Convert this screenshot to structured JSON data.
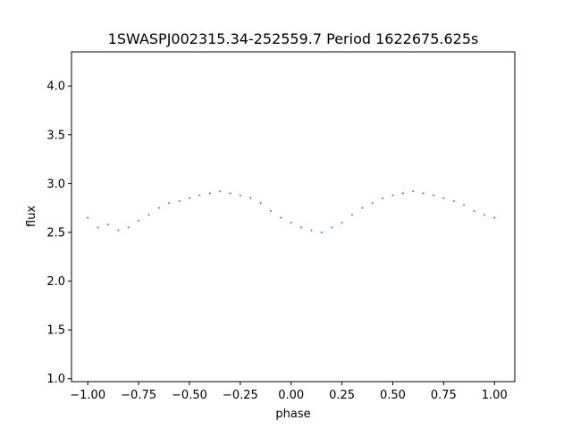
{
  "chart_data": {
    "type": "scatter",
    "title": "1SWASPJ002315.34-252559.7 Period 1622675.625s",
    "xlabel": "phase",
    "ylabel": "flux",
    "xlim": [
      -1.08,
      1.1
    ],
    "ylim": [
      0.97,
      4.35
    ],
    "xticks": [
      -1.0,
      -0.75,
      -0.5,
      -0.25,
      0.0,
      0.25,
      0.5,
      0.75,
      1.0
    ],
    "xtick_labels": [
      "−1.00",
      "−0.75",
      "−0.50",
      "−0.25",
      "0.00",
      "0.25",
      "0.50",
      "0.75",
      "1.00"
    ],
    "yticks": [
      1.0,
      1.5,
      2.0,
      2.5,
      3.0,
      3.5,
      4.0
    ],
    "ytick_labels": [
      "1.0",
      "1.5",
      "2.0",
      "2.5",
      "3.0",
      "3.5",
      "4.0"
    ],
    "grid": false,
    "legend": "none",
    "point_color": "#1f77b4",
    "series": [
      {
        "x": [
          -1.0,
          -0.95,
          -0.9,
          -0.85,
          -0.8,
          -0.75,
          -0.7,
          -0.65,
          -0.6,
          -0.55,
          -0.5,
          -0.45,
          -0.4,
          -0.35,
          -0.3,
          -0.25,
          -0.2,
          -0.15,
          -0.1,
          -0.05,
          0.0,
          0.05,
          0.1,
          0.15,
          0.2,
          0.25,
          0.3,
          0.35,
          0.4,
          0.45,
          0.5,
          0.55,
          0.6,
          0.65,
          0.7,
          0.75,
          0.8,
          0.85,
          0.9,
          0.95,
          1.0
        ],
        "y": [
          2.65,
          2.55,
          2.58,
          2.52,
          2.55,
          2.62,
          2.68,
          2.75,
          2.8,
          2.82,
          2.85,
          2.88,
          2.9,
          2.92,
          2.9,
          2.88,
          2.85,
          2.8,
          2.72,
          2.65,
          2.6,
          2.55,
          2.52,
          2.5,
          2.55,
          2.6,
          2.68,
          2.75,
          2.8,
          2.85,
          2.88,
          2.9,
          2.92,
          2.9,
          2.88,
          2.85,
          2.82,
          2.78,
          2.72,
          2.68,
          2.65
        ]
      }
    ]
  }
}
